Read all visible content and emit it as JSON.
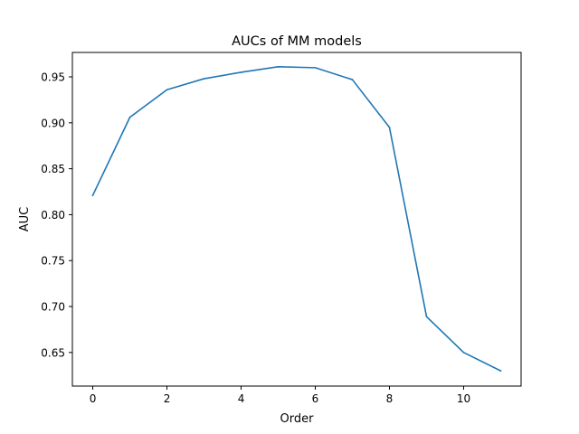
{
  "chart_data": {
    "type": "line",
    "title": "AUCs of MM models",
    "xlabel": "Order",
    "ylabel": "AUC",
    "x": [
      0,
      1,
      2,
      3,
      4,
      5,
      6,
      7,
      8,
      9,
      10,
      11
    ],
    "series": [
      {
        "values": [
          0.821,
          0.906,
          0.936,
          0.948,
          0.955,
          0.961,
          0.96,
          0.947,
          0.895,
          0.689,
          0.65,
          0.63
        ],
        "color": "#1f77b4"
      }
    ],
    "xlim": [
      -0.55,
      11.55
    ],
    "ylim": [
      0.6134,
      0.9766
    ],
    "xticks": [
      0,
      2,
      4,
      6,
      8,
      10
    ],
    "yticks": [
      0.65,
      0.7,
      0.75,
      0.8,
      0.85,
      0.9,
      0.95
    ],
    "ytick_labels": [
      "0.65",
      "0.70",
      "0.75",
      "0.80",
      "0.85",
      "0.90",
      "0.95"
    ],
    "grid": false,
    "legend": "none"
  }
}
